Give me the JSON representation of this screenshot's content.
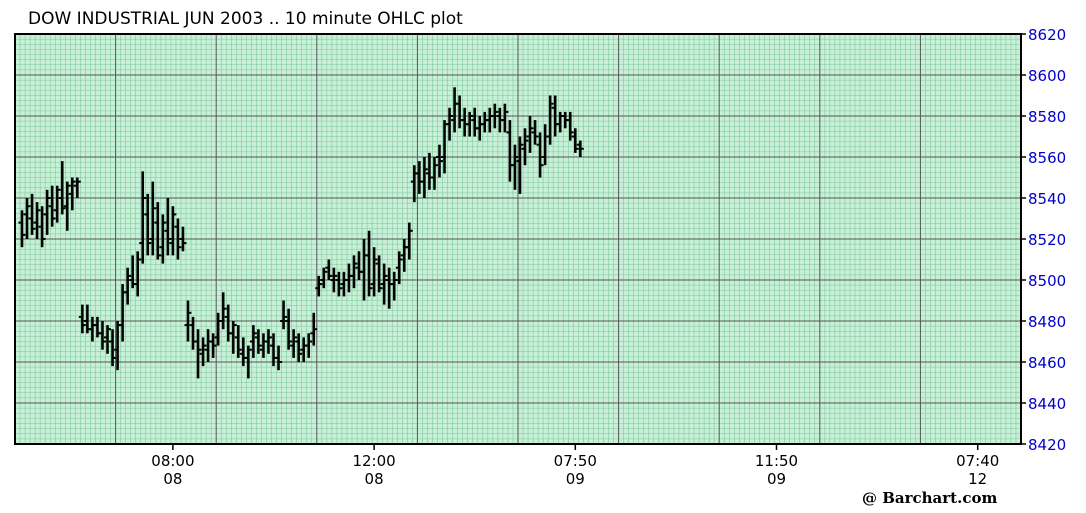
{
  "chart_data": {
    "type": "ohlc",
    "title": "DOW INDUSTRIAL JUN 2003 .. 10 minute OHLC plot",
    "credit": "@ Barchart.com",
    "ylim": [
      8420,
      8620
    ],
    "y_ticks": [
      "8420",
      "8440",
      "8460",
      "8480",
      "8500",
      "8520",
      "8540",
      "8560",
      "8580",
      "8600",
      "8620"
    ],
    "x_ticks": [
      {
        "time": "08:00",
        "day": "08",
        "at": 30
      },
      {
        "time": "12:00",
        "day": "08",
        "at": 70
      },
      {
        "time": "07:50",
        "day": "09",
        "at": 110
      },
      {
        "time": "11:50",
        "day": "09",
        "at": 150
      },
      {
        "time": "07:40",
        "day": "12",
        "at": 190
      }
    ],
    "grid": true,
    "colors": {
      "background": "#c8f0d8",
      "grid_minor": "#7fc89a",
      "grid_major": "#555555",
      "bars": "#000000",
      "latest_bars": "#0000dd",
      "axis_labels": "#0000cc"
    },
    "bars": [
      [
        8528,
        8534,
        8516,
        8522
      ],
      [
        8532,
        8540,
        8520,
        8536
      ],
      [
        8530,
        8542,
        8522,
        8525
      ],
      [
        8528,
        8538,
        8520,
        8534
      ],
      [
        8526,
        8536,
        8516,
        8520
      ],
      [
        8532,
        8544,
        8522,
        8540
      ],
      [
        8536,
        8546,
        8526,
        8530
      ],
      [
        8534,
        8546,
        8528,
        8544
      ],
      [
        8540,
        8558,
        8532,
        8535
      ],
      [
        8536,
        8548,
        8524,
        8546
      ],
      [
        8542,
        8550,
        8534,
        8548
      ],
      [
        8546,
        8550,
        8540,
        8548
      ],
      [
        8482,
        8488,
        8474,
        8478
      ],
      [
        8480,
        8488,
        8474,
        8476
      ],
      [
        8476,
        8482,
        8470,
        8478
      ],
      [
        8478,
        8482,
        8472,
        8474
      ],
      [
        8474,
        8480,
        8466,
        8470
      ],
      [
        8472,
        8478,
        8464,
        8476
      ],
      [
        8470,
        8476,
        8458,
        8462
      ],
      [
        8466,
        8480,
        8456,
        8478
      ],
      [
        8478,
        8498,
        8470,
        8494
      ],
      [
        8494,
        8506,
        8488,
        8502
      ],
      [
        8500,
        8512,
        8496,
        8498
      ],
      [
        8498,
        8514,
        8492,
        8510
      ],
      [
        8518,
        8553,
        8508,
        8540
      ],
      [
        8532,
        8542,
        8512,
        8518
      ],
      [
        8520,
        8548,
        8512,
        8535
      ],
      [
        8528,
        8538,
        8510,
        8512
      ],
      [
        8516,
        8532,
        8508,
        8528
      ],
      [
        8524,
        8540,
        8512,
        8520
      ],
      [
        8518,
        8536,
        8512,
        8532
      ],
      [
        8526,
        8530,
        8510,
        8516
      ],
      [
        8520,
        8526,
        8514,
        8518
      ],
      [
        8478,
        8490,
        8470,
        8484
      ],
      [
        8478,
        8482,
        8466,
        8470
      ],
      [
        8470,
        8476,
        8452,
        8466
      ],
      [
        8464,
        8472,
        8458,
        8468
      ],
      [
        8466,
        8476,
        8460,
        8470
      ],
      [
        8470,
        8474,
        8462,
        8468
      ],
      [
        8472,
        8484,
        8468,
        8480
      ],
      [
        8480,
        8494,
        8476,
        8486
      ],
      [
        8482,
        8488,
        8470,
        8474
      ],
      [
        8474,
        8480,
        8464,
        8478
      ],
      [
        8472,
        8478,
        8462,
        8466
      ],
      [
        8464,
        8472,
        8458,
        8462
      ],
      [
        8462,
        8468,
        8452,
        8466
      ],
      [
        8470,
        8478,
        8462,
        8474
      ],
      [
        8472,
        8476,
        8464,
        8468
      ],
      [
        8466,
        8474,
        8462,
        8470
      ],
      [
        8470,
        8476,
        8464,
        8472
      ],
      [
        8468,
        8474,
        8458,
        8462
      ],
      [
        8462,
        8468,
        8456,
        8460
      ],
      [
        8480,
        8490,
        8476,
        8482
      ],
      [
        8480,
        8486,
        8466,
        8470
      ],
      [
        8468,
        8476,
        8462,
        8472
      ],
      [
        8470,
        8474,
        8460,
        8464
      ],
      [
        8466,
        8472,
        8460,
        8468
      ],
      [
        8468,
        8474,
        8462,
        8470
      ],
      [
        8474,
        8484,
        8468,
        8476
      ],
      [
        8496,
        8502,
        8492,
        8498
      ],
      [
        8500,
        8506,
        8496,
        8504
      ],
      [
        8506,
        8510,
        8500,
        8502
      ],
      [
        8500,
        8506,
        8494,
        8502
      ],
      [
        8500,
        8504,
        8492,
        8496
      ],
      [
        8498,
        8504,
        8492,
        8500
      ],
      [
        8500,
        8508,
        8494,
        8502
      ],
      [
        8502,
        8512,
        8496,
        8508
      ],
      [
        8506,
        8514,
        8500,
        8504
      ],
      [
        8504,
        8520,
        8490,
        8512
      ],
      [
        8512,
        8524,
        8492,
        8496
      ],
      [
        8498,
        8516,
        8492,
        8510
      ],
      [
        8508,
        8512,
        8494,
        8496
      ],
      [
        8498,
        8508,
        8488,
        8502
      ],
      [
        8500,
        8506,
        8486,
        8498
      ],
      [
        8498,
        8504,
        8490,
        8500
      ],
      [
        8506,
        8514,
        8498,
        8510
      ],
      [
        8512,
        8520,
        8504,
        8516
      ],
      [
        8516,
        8528,
        8510,
        8524
      ],
      [
        8548,
        8556,
        8538,
        8552
      ],
      [
        8552,
        8558,
        8542,
        8548
      ],
      [
        8548,
        8560,
        8540,
        8554
      ],
      [
        8552,
        8562,
        8544,
        8550
      ],
      [
        8550,
        8560,
        8544,
        8556
      ],
      [
        8560,
        8566,
        8550,
        8558
      ],
      [
        8560,
        8578,
        8552,
        8576
      ],
      [
        8576,
        8584,
        8568,
        8580
      ],
      [
        8578,
        8594,
        8572,
        8586
      ],
      [
        8586,
        8590,
        8574,
        8578
      ],
      [
        8578,
        8584,
        8570,
        8576
      ],
      [
        8576,
        8582,
        8570,
        8580
      ],
      [
        8578,
        8584,
        8570,
        8574
      ],
      [
        8574,
        8580,
        8568,
        8576
      ],
      [
        8576,
        8582,
        8572,
        8578
      ],
      [
        8578,
        8584,
        8572,
        8580
      ],
      [
        8580,
        8586,
        8574,
        8582
      ],
      [
        8580,
        8584,
        8572,
        8578
      ],
      [
        8578,
        8586,
        8572,
        8582
      ],
      [
        8572,
        8578,
        8548,
        8556
      ],
      [
        8556,
        8566,
        8544,
        8560
      ],
      [
        8558,
        8570,
        8542,
        8566
      ],
      [
        8564,
        8574,
        8556,
        8568
      ],
      [
        8570,
        8580,
        8562,
        8574
      ],
      [
        8572,
        8578,
        8566,
        8570
      ],
      [
        8566,
        8572,
        8550,
        8556
      ],
      [
        8560,
        8576,
        8556,
        8570
      ],
      [
        8570,
        8590,
        8566,
        8586
      ],
      [
        8584,
        8590,
        8570,
        8576
      ],
      [
        8576,
        8582,
        8572,
        8580
      ],
      [
        8580,
        8582,
        8574,
        8578
      ],
      [
        8578,
        8582,
        8568,
        8572
      ],
      [
        8570,
        8574,
        8562,
        8564
      ],
      [
        8566,
        8568,
        8560,
        8564
      ]
    ],
    "latest_from": 112
  }
}
